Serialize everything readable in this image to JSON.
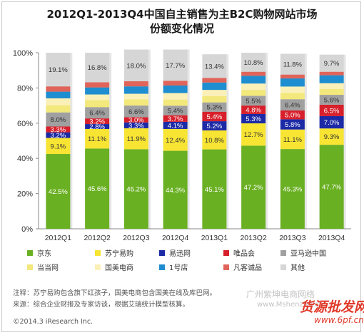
{
  "chart_data": {
    "type": "bar",
    "stacked": true,
    "title_line1": "2012Q1-2013Q4中国自主销售为主B2C购物网站市场",
    "title_line2": "份额变化情况",
    "categories": [
      "2012Q1",
      "2012Q2",
      "2012Q3",
      "2012Q4",
      "2013Q1",
      "2013Q2",
      "2013Q3",
      "2013Q4"
    ],
    "ylim": [
      0,
      100
    ],
    "yticks": [
      "0%",
      "20%",
      "40%",
      "60%",
      "80%",
      "100%"
    ],
    "grid": false,
    "legend_position": "bottom",
    "series": [
      {
        "name": "京东",
        "color": "#6ab023",
        "values": [
          42.5,
          45.6,
          45.2,
          44.3,
          45.1,
          47.2,
          45.3,
          47.7
        ],
        "labels": [
          "42.5%",
          "45.6%",
          "45.2%",
          "44.3%",
          "45.1%",
          "47.2%",
          "45.3%",
          "47.7%"
        ]
      },
      {
        "name": "苏宁易购",
        "color": "#f7e433",
        "values": [
          9.1,
          11.1,
          11.9,
          12.4,
          10.8,
          12.7,
          11.1,
          9.3
        ],
        "labels": [
          "9.1%",
          "11.1%",
          "11.9%",
          "12.4%",
          "10.8%",
          "12.7%",
          "11.1%",
          "9.3%"
        ]
      },
      {
        "name": "易迅网",
        "color": "#1c2aa6",
        "values": [
          3.2,
          2.8,
          3.3,
          4.1,
          5.2,
          5.3,
          5.8,
          7.0
        ],
        "labels": [
          "3.2%",
          "2.8%",
          "3.3%",
          "4.1%",
          "5.2%",
          "5.3%",
          "5.8%",
          "7.0%"
        ]
      },
      {
        "name": "唯品会",
        "color": "#d7202b",
        "values": [
          3.3,
          3.2,
          3.0,
          3.7,
          5.4,
          4.8,
          5.0,
          6.5
        ],
        "labels": [
          "3.3%",
          "3.2%",
          "3.0%",
          "3.7%",
          "5.4%",
          "4.8%",
          "5.0%",
          "6.5%"
        ]
      },
      {
        "name": "亚马逊中国",
        "color": "#a0a0a0",
        "values": [
          8.0,
          6.4,
          6.6,
          5.4,
          5.3,
          5.5,
          6.4,
          5.6
        ],
        "labels": [
          "8.0%",
          "6.4%",
          "6.6%",
          "5.4%",
          "5.3%",
          "5.5%",
          "6.4%",
          "5.6%"
        ]
      },
      {
        "name": "当当网",
        "color": "#f3e87b",
        "values": [
          4.1,
          4.0,
          3.5,
          3.5,
          3.6,
          3.4,
          3.5,
          3.3
        ],
        "labels": [
          "",
          "",
          "",
          "",
          "",
          "",
          "",
          ""
        ]
      },
      {
        "name": "国美电商",
        "color": "#fbf1b8",
        "values": [
          3.9,
          3.2,
          3.2,
          3.7,
          3.5,
          3.6,
          3.7,
          3.3
        ],
        "labels": [
          "",
          "",
          "",
          "",
          "",
          "",
          "",
          ""
        ]
      },
      {
        "name": "1号店",
        "color": "#1f8ed0",
        "values": [
          3.8,
          4.0,
          4.2,
          4.3,
          4.2,
          4.4,
          4.6,
          4.5
        ],
        "labels": [
          "",
          "",
          "",
          "",
          "",
          "",
          "",
          ""
        ]
      },
      {
        "name": "凡客诚品",
        "color": "#e0645a",
        "values": [
          3.0,
          2.9,
          2.9,
          2.7,
          2.6,
          2.3,
          2.2,
          2.0
        ],
        "labels": [
          "",
          "",
          "",
          "",
          "",
          "",
          "",
          ""
        ]
      },
      {
        "name": "其他",
        "color": "#d6d6d6",
        "values": [
          19.1,
          16.8,
          18.0,
          17.7,
          13.4,
          10.8,
          11.8,
          9.7
        ],
        "labels": [
          "19.1%",
          "16.8%",
          "18.0%",
          "17.7%",
          "13.4%",
          "10.8%",
          "11.8%",
          "9.7%"
        ]
      }
    ]
  },
  "notes": {
    "line1": "注释：苏宁易购包含旗下红孩子，国美电商包含国美在线及库巴网。",
    "line2": "来源：综合企业财报及专家访谈，根据艾瑞统计模型核算。"
  },
  "copyright": "©2014.3 iResearch Inc.",
  "watermark": {
    "line1": "广州紫坤电商网络",
    "line2": "www.Mshenzw.com",
    "logo_text": "货源批发网",
    "logo_domain": "www.6pf.cn"
  }
}
